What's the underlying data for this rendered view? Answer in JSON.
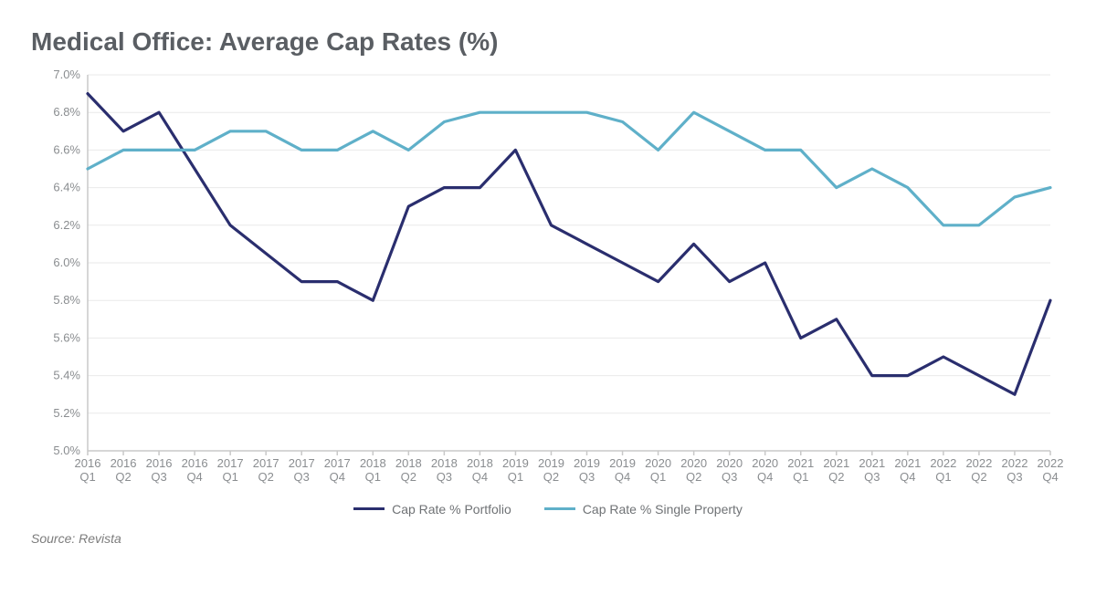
{
  "chart": {
    "type": "line",
    "title": "Medical Office: Average Cap Rates (%)",
    "title_fontsize": 28,
    "title_color": "#5a5e63",
    "background_color": "#ffffff",
    "grid_color": "#e9e9e9",
    "axis_color": "#c9c9c9",
    "tick_label_color": "#8a8d90",
    "x_categories": [
      "2016 Q1",
      "2016 Q2",
      "2016 Q3",
      "2016 Q4",
      "2017 Q1",
      "2017 Q2",
      "2017 Q3",
      "2017 Q4",
      "2018 Q1",
      "2018 Q2",
      "2018 Q3",
      "2018 Q4",
      "2019 Q1",
      "2019 Q2",
      "2019 Q3",
      "2019 Q4",
      "2020 Q1",
      "2020 Q2",
      "2020 Q3",
      "2020 Q4",
      "2021 Q1",
      "2021 Q2",
      "2021 Q3",
      "2021 Q4",
      "2022 Q1",
      "2022 Q2",
      "2022 Q3",
      "2022 Q4"
    ],
    "ylim": [
      5.0,
      7.0
    ],
    "ytick_step": 0.2,
    "ytick_format_suffix": "%",
    "series": [
      {
        "name": "Cap Rate % Portfolio",
        "color": "#2a2e6e",
        "values": [
          6.9,
          6.7,
          6.8,
          6.5,
          6.2,
          6.05,
          5.9,
          5.9,
          5.8,
          6.3,
          6.4,
          6.4,
          6.6,
          6.2,
          6.1,
          6.0,
          5.9,
          6.1,
          5.9,
          6.0,
          5.6,
          5.7,
          5.4,
          5.4,
          5.5,
          5.4,
          5.3,
          5.8
        ]
      },
      {
        "name": "Cap Rate % Single Property",
        "color": "#5fb0c9",
        "values": [
          6.5,
          6.6,
          6.6,
          6.6,
          6.7,
          6.7,
          6.6,
          6.6,
          6.7,
          6.6,
          6.75,
          6.8,
          6.8,
          6.8,
          6.8,
          6.75,
          6.6,
          6.8,
          6.7,
          6.6,
          6.6,
          6.4,
          6.5,
          6.4,
          6.2,
          6.2,
          6.35,
          6.4
        ]
      }
    ],
    "line_width": 3.2,
    "legend_position": "bottom-center"
  },
  "source_label": "Source: Revista"
}
